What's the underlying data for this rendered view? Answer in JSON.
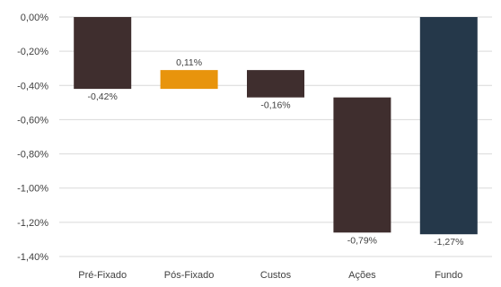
{
  "chart_data": {
    "type": "bar",
    "subtype": "waterfall",
    "categories": [
      "Pré-Fixado",
      "Pós-Fixado",
      "Custos",
      "Ações",
      "Fundo"
    ],
    "values": [
      -0.42,
      0.11,
      -0.16,
      -0.79,
      -1.27
    ],
    "value_labels": [
      "-0,42%",
      "0,11%",
      "-0,16%",
      "-0,79%",
      "-1,27%"
    ],
    "ylim": [
      -1.4,
      0.0
    ],
    "yticks": [
      0.0,
      -0.2,
      -0.4,
      -0.6,
      -0.8,
      -1.0,
      -1.2,
      -1.4
    ],
    "ytick_labels": [
      "0,00%",
      "-0,20%",
      "-0,40%",
      "-0,60%",
      "-0,80%",
      "-1,00%",
      "-1,20%",
      "-1,40%"
    ],
    "grid": true,
    "legend": "none",
    "title": "",
    "xlabel": "",
    "ylabel": "",
    "colors": {
      "negative": "#3f2e2e",
      "positive": "#e8940c",
      "total": "#25384a",
      "grid": "#d9d9d9",
      "text": "#404040"
    }
  }
}
